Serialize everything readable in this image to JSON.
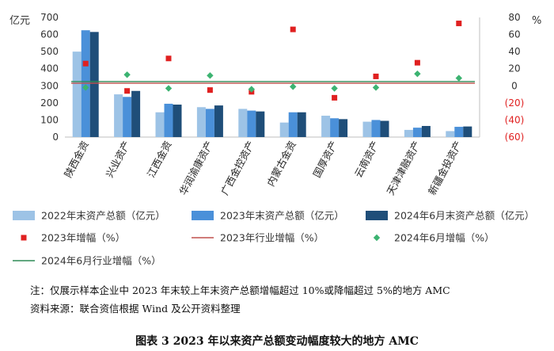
{
  "chart_data": {
    "type": "bar",
    "ylabel_left": "亿元",
    "ylabel_right": "%",
    "ylim_left": [
      0,
      700
    ],
    "yticks_left": [
      "0",
      "100",
      "200",
      "300",
      "400",
      "500",
      "600",
      "700"
    ],
    "ylim_right": [
      -60,
      80
    ],
    "yticks_right": [
      "(60)",
      "(40)",
      "(20)",
      "0",
      "20",
      "40",
      "60",
      "80"
    ],
    "categories": [
      "陕西金资",
      "兴业资产",
      "江西金资",
      "华润渝康资产",
      "广西金控资产",
      "内蒙古金资",
      "国厚资产",
      "云南资产",
      "天津津融资产",
      "新疆金投资产"
    ],
    "series": [
      {
        "name": "2022年末资产总额（亿元）",
        "kind": "bar",
        "axis": "left",
        "color": "#9dc3e6",
        "values": [
          500,
          250,
          145,
          175,
          165,
          85,
          125,
          90,
          42,
          35
        ]
      },
      {
        "name": "2023年末资产总额（亿元）",
        "kind": "bar",
        "axis": "left",
        "color": "#4a90d9",
        "values": [
          625,
          235,
          195,
          165,
          155,
          145,
          110,
          100,
          55,
          60
        ]
      },
      {
        "name": "2024年6月末资产总额（亿元）",
        "kind": "bar",
        "axis": "left",
        "color": "#1f4e79",
        "values": [
          615,
          270,
          190,
          185,
          150,
          145,
          105,
          95,
          65,
          62
        ]
      },
      {
        "name": "2023年增幅（%）",
        "kind": "marker-square",
        "axis": "right",
        "color": "#e02020",
        "values": [
          26,
          -6,
          32,
          -5,
          -7,
          66,
          -14,
          11,
          27,
          73
        ]
      },
      {
        "name": "2023年行业增幅（%）",
        "kind": "line",
        "axis": "right",
        "color": "#c0504d",
        "values": [
          3,
          3,
          3,
          3,
          3,
          3,
          3,
          3,
          3,
          3
        ]
      },
      {
        "name": "2024年6月增幅（%）",
        "kind": "marker-diamond",
        "axis": "right",
        "color": "#3cb371",
        "values": [
          -2,
          13,
          -3,
          12,
          -4,
          -1,
          -3,
          -2,
          14,
          9
        ]
      },
      {
        "name": "2024年6月行业增幅（%）",
        "kind": "line",
        "axis": "right",
        "color": "#2e8b57",
        "values": [
          5,
          5,
          5,
          5,
          5,
          5,
          5,
          5,
          5,
          5
        ]
      }
    ]
  },
  "notes": {
    "note_line": "注：仅展示样本企业中 2023 年末较上年末资产总额增幅超过 10%或降幅超过 5%的地方 AMC",
    "source_line": "资料来源：联合资信根据 Wind 及公开资料整理"
  },
  "caption": "图表 3    2023 年以来资产总额变动幅度较大的地方 AMC"
}
